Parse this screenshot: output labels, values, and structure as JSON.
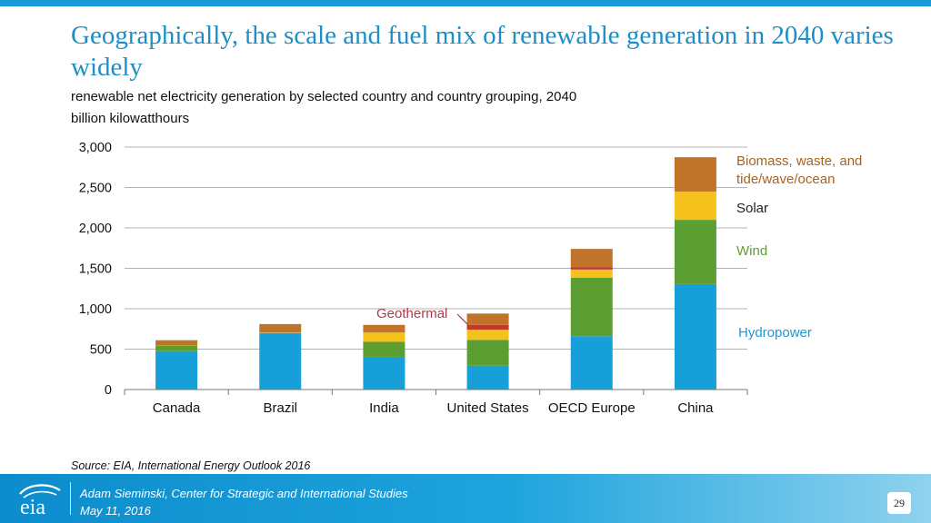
{
  "slide": {
    "title": "Geographically, the scale and fuel mix of renewable generation in 2040 varies widely",
    "subtitle": "renewable net electricity generation by selected country and country grouping, 2040",
    "unit": "billion kilowatthours",
    "source": "Source:  EIA, International Energy Outlook 2016",
    "footer": {
      "presenter": "Adam Sieminski, Center for Strategic and International Studies",
      "date": "May 11, 2016",
      "page": "29",
      "logo_text": "eia"
    }
  },
  "chart_data": {
    "type": "bar",
    "stacked": true,
    "categories": [
      "Canada",
      "Brazil",
      "India",
      "United States",
      "OECD Europe",
      "China"
    ],
    "ylim": [
      0,
      3000
    ],
    "yticks": [
      0,
      500,
      1000,
      1500,
      2000,
      2500,
      3000
    ],
    "ytick_labels": [
      "0",
      "500",
      "1,000",
      "1,500",
      "2,000",
      "2,500",
      "3,000"
    ],
    "grid": true,
    "series": [
      {
        "name": "Hydropower",
        "color": "#169fd9",
        "label_color": "#1a9ad6",
        "values": [
          475,
          700,
          405,
          295,
          660,
          1305
        ]
      },
      {
        "name": "Wind",
        "color": "#5c9e31",
        "label_color": "#5c9e31",
        "values": [
          70,
          0,
          185,
          320,
          725,
          795
        ]
      },
      {
        "name": "Solar",
        "color": "#f5c21b",
        "label_color": "#222222",
        "values": [
          5,
          5,
          115,
          125,
          100,
          350
        ]
      },
      {
        "name": "Geothermal",
        "color": "#c0392b",
        "label_color": "#b03a48",
        "values": [
          0,
          0,
          0,
          60,
          30,
          0
        ]
      },
      {
        "name": "Biomass, waste, and tide/wave/ocean",
        "color": "#c0742a",
        "label_color": "#a8621f",
        "values": [
          60,
          105,
          95,
          140,
          225,
          425
        ]
      }
    ],
    "legend_labels": {
      "biomass_line1": "Biomass, waste, and",
      "biomass_line2": "tide/wave/ocean",
      "solar": "Solar",
      "wind": "Wind",
      "hydro": "Hydropower",
      "geothermal": "Geothermal"
    },
    "legend_position": "right"
  }
}
